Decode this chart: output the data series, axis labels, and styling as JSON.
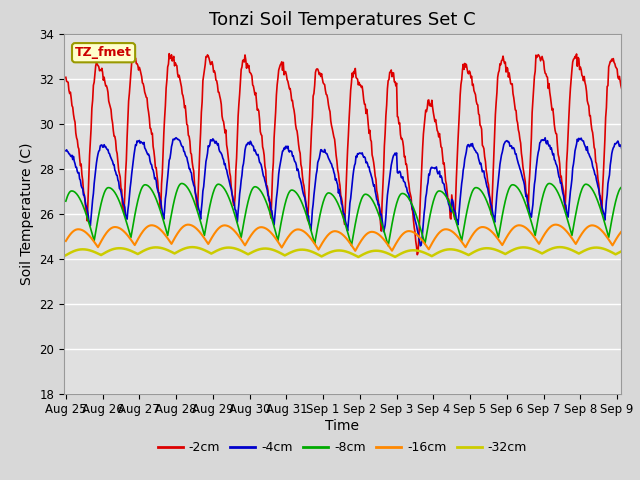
{
  "title": "Tonzi Soil Temperatures Set C",
  "xlabel": "Time",
  "ylabel": "Soil Temperature (C)",
  "ylim": [
    18,
    34
  ],
  "yticks": [
    18,
    20,
    22,
    24,
    26,
    28,
    30,
    32,
    34
  ],
  "xtick_labels": [
    "Aug 25",
    "Aug 26",
    "Aug 27",
    "Aug 28",
    "Aug 29",
    "Aug 30",
    "Aug 31",
    "Sep 1",
    "Sep 2",
    "Sep 3",
    "Sep 4",
    "Sep 5",
    "Sep 6",
    "Sep 7",
    "Sep 8",
    "Sep 9"
  ],
  "series": [
    {
      "label": "-2cm",
      "color": "#dd0000",
      "lw": 1.2
    },
    {
      "label": "-4cm",
      "color": "#0000cc",
      "lw": 1.2
    },
    {
      "label": "-8cm",
      "color": "#00aa00",
      "lw": 1.2
    },
    {
      "label": "-16cm",
      "color": "#ff8800",
      "lw": 1.5
    },
    {
      "label": "-32cm",
      "color": "#cccc00",
      "lw": 1.8
    }
  ],
  "legend_label": "TZ_fmet",
  "legend_bg": "#ffffcc",
  "legend_border": "#999900",
  "bg_color": "#d8d8d8",
  "axes_bg": "#e0e0e0",
  "grid_color": "#ffffff",
  "title_fontsize": 13,
  "label_fontsize": 10,
  "tick_fontsize": 8.5
}
